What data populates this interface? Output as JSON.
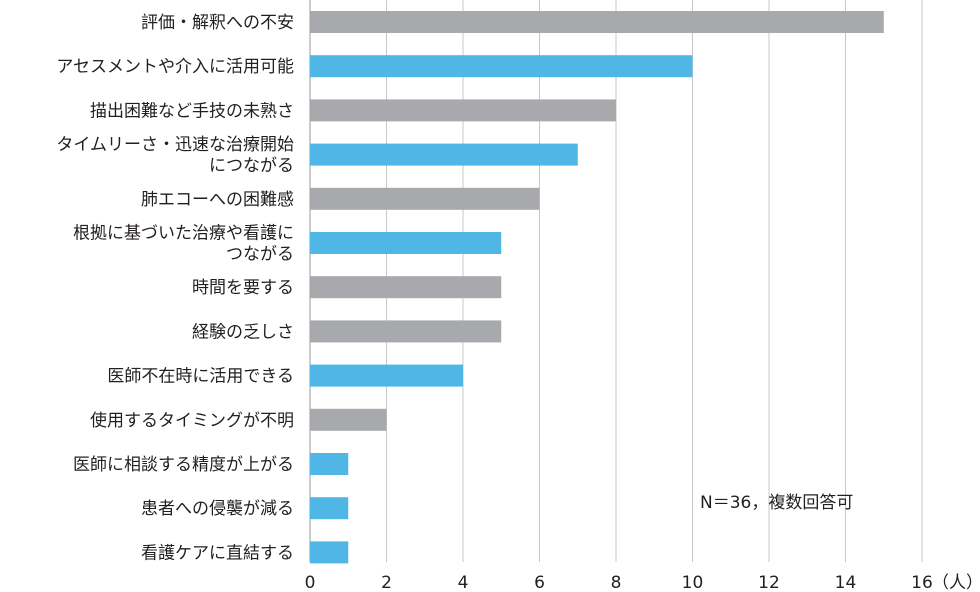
{
  "chart_data": {
    "type": "bar",
    "orientation": "horizontal",
    "categories": [
      [
        "評価・解釈への不安"
      ],
      [
        "アセスメントや介入に活用可能"
      ],
      [
        "描出困難など手技の未熟さ"
      ],
      [
        "タイムリーさ・迅速な治療開始",
        "につながる"
      ],
      [
        "肺エコーへの困難感"
      ],
      [
        "根拠に基づいた治療や看護に",
        "つながる"
      ],
      [
        "時間を要する"
      ],
      [
        "経験の乏しさ"
      ],
      [
        "医師不在時に活用できる"
      ],
      [
        "使用するタイミングが不明"
      ],
      [
        "医師に相談する精度が上がる"
      ],
      [
        "患者への侵襲が減る"
      ],
      [
        "看護ケアに直結する"
      ]
    ],
    "values": [
      15,
      10,
      8,
      7,
      6,
      5,
      5,
      5,
      4,
      2,
      1,
      1,
      1
    ],
    "bar_groups": [
      "gray",
      "blue",
      "gray",
      "blue",
      "gray",
      "blue",
      "gray",
      "gray",
      "blue",
      "gray",
      "blue",
      "blue",
      "blue"
    ],
    "colors": {
      "gray": "#a7a9ac",
      "blue": "#4fb6e6"
    },
    "xlim": [
      0,
      16
    ],
    "xticks": [
      0,
      2,
      4,
      6,
      8,
      10,
      12,
      14,
      16
    ],
    "x_unit": "（人）",
    "note": "N＝36，複数回答可",
    "grid": true,
    "legend": "none"
  }
}
